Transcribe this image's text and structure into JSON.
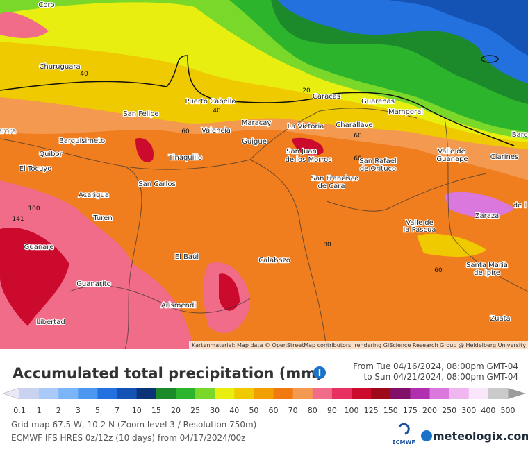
{
  "map": {
    "cities": [
      "Coro",
      "Churuguara",
      "Puerto Cabello",
      "Caracas",
      "Guarenas",
      "San Felipe",
      "Maracay",
      "Mamporal",
      "Valencia",
      "La Victoria",
      "Charallave",
      "Barquisimeto",
      "Guigue",
      "Barc",
      "arora",
      "Quibor",
      "San Juan",
      "de los Morros",
      "Valle de",
      "Guanape",
      "Clarines",
      "Tinaquillo",
      "San Rafael",
      "de Orituco",
      "El Tocuyo",
      "San Francisco",
      "de Cara",
      "San Carlos",
      "Acarigua",
      "de l",
      "Turen",
      "Zaraza",
      "Valle de",
      "la Pascua",
      "Guanare",
      "El Baúl",
      "Calabozo",
      "Santa María",
      "de Ipire",
      "Guanarito",
      "Arismendi",
      "Zuata",
      "Libertad"
    ],
    "contour_labels": [
      "40",
      "20",
      "40",
      "60",
      "60",
      "60",
      "80",
      "60",
      "100",
      "141"
    ],
    "attribution": "Kartenmaterial: Map data © OpenStreetMap contributors, rendering GIScience Research Group @ Heidelberg University"
  },
  "legend": {
    "title": "Accumulated total precipitation (mm)",
    "info": "i",
    "from": "From Tue 04/16/2024, 08:00pm GMT-04",
    "to": "to Sun 04/21/2024, 08:00pm GMT-04",
    "ticks": [
      0.1,
      1,
      2,
      3,
      5,
      7,
      10,
      15,
      20,
      25,
      30,
      40,
      50,
      60,
      70,
      80,
      90,
      100,
      125,
      150,
      175,
      200,
      250,
      300,
      400,
      500
    ],
    "colors": [
      "#c9d3f1",
      "#a9c9f8",
      "#7bb5f7",
      "#4c97ef",
      "#2271df",
      "#1452b3",
      "#0b3377",
      "#1c8a2a",
      "#2cb42c",
      "#7ad82a",
      "#e8ef10",
      "#f0ca00",
      "#f2a000",
      "#f07a10",
      "#f49a50",
      "#f06c88",
      "#e83062",
      "#cc0a2e",
      "#9e0a1a",
      "#80106a",
      "#b030b0",
      "#da78de",
      "#efb6f0",
      "#f9e6fa",
      "#cacaca"
    ],
    "under_color": "#e8e8f6",
    "over_color": "#9c9c9c"
  },
  "footer": {
    "line1": "Grid map 67.5 W, 10.2 N (Zoom level 3 / Resolution 750m)",
    "line2": "ECMWF IFS HRES 0z/12z (10 days) from 04/17/2024/00z",
    "ecmwf": "ECMWF",
    "brand": "meteologix.com"
  }
}
